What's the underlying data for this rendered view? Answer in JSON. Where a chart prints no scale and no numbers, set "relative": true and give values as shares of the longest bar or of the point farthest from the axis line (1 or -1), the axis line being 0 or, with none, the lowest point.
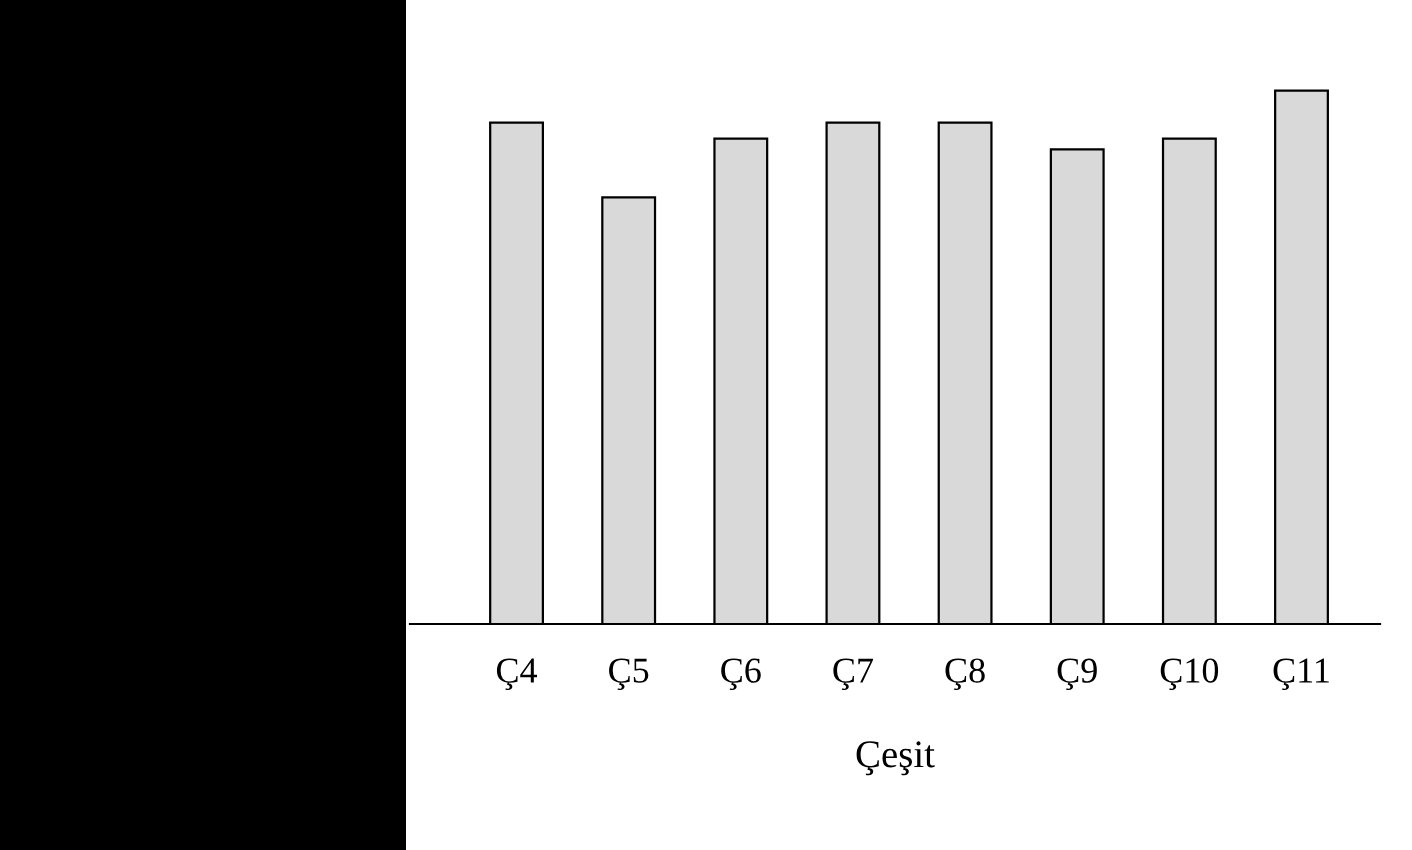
{
  "chart_data": {
    "type": "bar",
    "relative": true,
    "xlabel": "Çeşit",
    "categories": [
      "Ç4",
      "Ç5",
      "Ç6",
      "Ç7",
      "Ç8",
      "Ç9",
      "Ç10",
      "Ç11"
    ],
    "values": [
      0.94,
      0.8,
      0.91,
      0.94,
      0.94,
      0.89,
      0.91,
      1
    ],
    "color": "#d9d9d9",
    "grid": false,
    "legend": false
  }
}
